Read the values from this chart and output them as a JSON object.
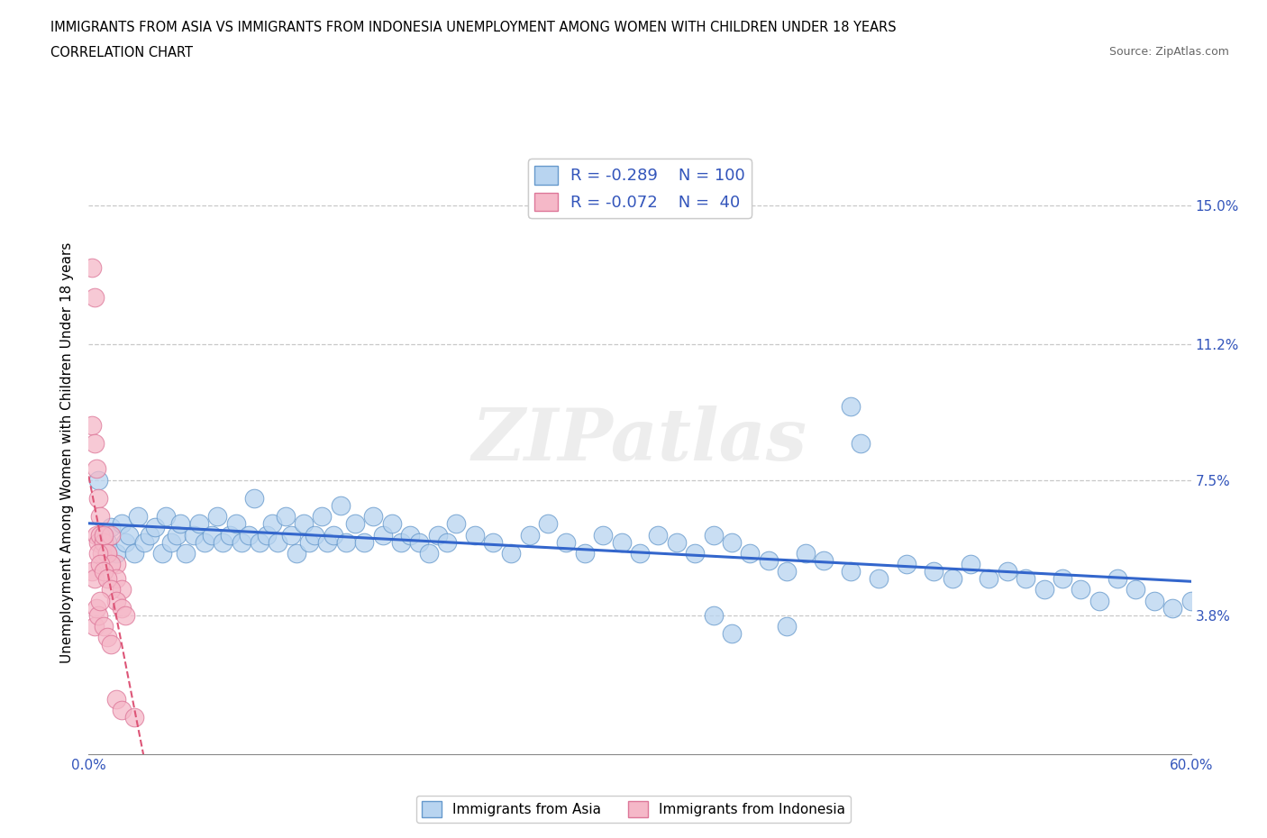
{
  "title_line1": "IMMIGRANTS FROM ASIA VS IMMIGRANTS FROM INDONESIA UNEMPLOYMENT AMONG WOMEN WITH CHILDREN UNDER 18 YEARS",
  "title_line2": "CORRELATION CHART",
  "source_text": "Source: ZipAtlas.com",
  "ylabel": "Unemployment Among Women with Children Under 18 years",
  "xlim": [
    0.0,
    0.6
  ],
  "ylim": [
    0.0,
    0.165
  ],
  "xtick_positions": [
    0.0,
    0.1,
    0.2,
    0.3,
    0.4,
    0.5,
    0.6
  ],
  "xticklabels_show": [
    "0.0%",
    "",
    "",
    "",
    "",
    "",
    "60.0%"
  ],
  "ytick_positions": [
    0.038,
    0.075,
    0.112,
    0.15
  ],
  "ytick_labels": [
    "3.8%",
    "7.5%",
    "11.2%",
    "15.0%"
  ],
  "grid_color": "#c8c8c8",
  "background_color": "#ffffff",
  "asia_color": "#b8d4f0",
  "asia_edge_color": "#6699cc",
  "indonesia_color": "#f5b8c8",
  "indonesia_edge_color": "#dd7799",
  "asia_R": -0.289,
  "asia_N": 100,
  "indonesia_R": -0.072,
  "indonesia_N": 40,
  "legend_text_color": "#3355bb",
  "axis_tick_color": "#3355bb",
  "trend_asia_color": "#3366cc",
  "trend_indonesia_color": "#dd5577",
  "watermark_text": "ZIPatlas",
  "asia_x": [
    0.005,
    0.008,
    0.01,
    0.012,
    0.015,
    0.018,
    0.02,
    0.022,
    0.025,
    0.027,
    0.03,
    0.033,
    0.036,
    0.04,
    0.042,
    0.045,
    0.048,
    0.05,
    0.053,
    0.057,
    0.06,
    0.063,
    0.067,
    0.07,
    0.073,
    0.077,
    0.08,
    0.083,
    0.087,
    0.09,
    0.093,
    0.097,
    0.1,
    0.103,
    0.107,
    0.11,
    0.113,
    0.117,
    0.12,
    0.123,
    0.127,
    0.13,
    0.133,
    0.137,
    0.14,
    0.145,
    0.15,
    0.155,
    0.16,
    0.165,
    0.17,
    0.175,
    0.18,
    0.185,
    0.19,
    0.195,
    0.2,
    0.21,
    0.22,
    0.23,
    0.24,
    0.25,
    0.26,
    0.27,
    0.28,
    0.29,
    0.3,
    0.31,
    0.32,
    0.33,
    0.34,
    0.35,
    0.36,
    0.37,
    0.38,
    0.39,
    0.4,
    0.415,
    0.43,
    0.445,
    0.46,
    0.47,
    0.48,
    0.49,
    0.5,
    0.51,
    0.52,
    0.53,
    0.54,
    0.55,
    0.56,
    0.57,
    0.58,
    0.59,
    0.6,
    0.415,
    0.42,
    0.34,
    0.38,
    0.35
  ],
  "asia_y": [
    0.075,
    0.06,
    0.058,
    0.062,
    0.055,
    0.063,
    0.058,
    0.06,
    0.055,
    0.065,
    0.058,
    0.06,
    0.062,
    0.055,
    0.065,
    0.058,
    0.06,
    0.063,
    0.055,
    0.06,
    0.063,
    0.058,
    0.06,
    0.065,
    0.058,
    0.06,
    0.063,
    0.058,
    0.06,
    0.07,
    0.058,
    0.06,
    0.063,
    0.058,
    0.065,
    0.06,
    0.055,
    0.063,
    0.058,
    0.06,
    0.065,
    0.058,
    0.06,
    0.068,
    0.058,
    0.063,
    0.058,
    0.065,
    0.06,
    0.063,
    0.058,
    0.06,
    0.058,
    0.055,
    0.06,
    0.058,
    0.063,
    0.06,
    0.058,
    0.055,
    0.06,
    0.063,
    0.058,
    0.055,
    0.06,
    0.058,
    0.055,
    0.06,
    0.058,
    0.055,
    0.06,
    0.058,
    0.055,
    0.053,
    0.05,
    0.055,
    0.053,
    0.05,
    0.048,
    0.052,
    0.05,
    0.048,
    0.052,
    0.048,
    0.05,
    0.048,
    0.045,
    0.048,
    0.045,
    0.042,
    0.048,
    0.045,
    0.042,
    0.04,
    0.042,
    0.095,
    0.085,
    0.038,
    0.035,
    0.033
  ],
  "indonesia_x": [
    0.002,
    0.003,
    0.004,
    0.005,
    0.006,
    0.007,
    0.008,
    0.01,
    0.012,
    0.015,
    0.002,
    0.003,
    0.004,
    0.005,
    0.006,
    0.008,
    0.01,
    0.012,
    0.015,
    0.018,
    0.002,
    0.003,
    0.005,
    0.006,
    0.008,
    0.01,
    0.012,
    0.015,
    0.018,
    0.02,
    0.003,
    0.004,
    0.005,
    0.006,
    0.008,
    0.01,
    0.012,
    0.015,
    0.018,
    0.025
  ],
  "indonesia_y": [
    0.133,
    0.125,
    0.06,
    0.058,
    0.06,
    0.055,
    0.058,
    0.055,
    0.06,
    0.052,
    0.09,
    0.085,
    0.078,
    0.07,
    0.065,
    0.06,
    0.055,
    0.052,
    0.048,
    0.045,
    0.05,
    0.048,
    0.055,
    0.052,
    0.05,
    0.048,
    0.045,
    0.042,
    0.04,
    0.038,
    0.035,
    0.04,
    0.038,
    0.042,
    0.035,
    0.032,
    0.03,
    0.015,
    0.012,
    0.01
  ]
}
